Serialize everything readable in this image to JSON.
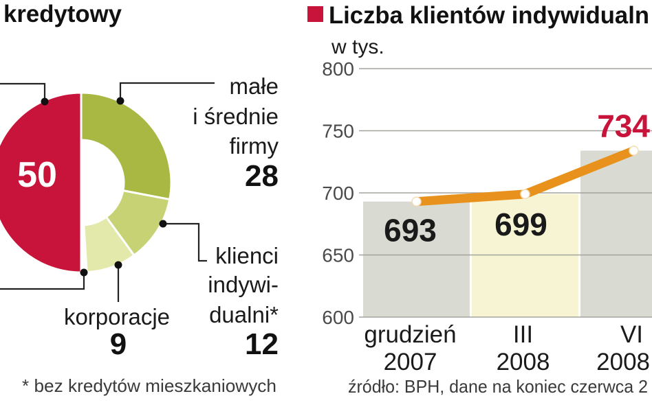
{
  "chart_data": [
    {
      "type": "pie",
      "title": "kredytowy",
      "donut": true,
      "slices": [
        {
          "value": 50,
          "color": "#c8143a",
          "label_lines": []
        },
        {
          "value": 28,
          "color": "#a8b843",
          "label_lines": [
            "małe",
            "i średnie",
            "firmy"
          ]
        },
        {
          "value": 12,
          "color": "#c6d273",
          "label_lines": [
            "klienci",
            "indywi-",
            "dualni*"
          ]
        },
        {
          "value": 9,
          "color": "#e2e9ab",
          "label_lines": [
            "korporacje"
          ]
        }
      ],
      "footnote": "* bez kredytów mieszkaniowych"
    },
    {
      "type": "line",
      "title": "Liczba klientów indywidualn",
      "title_marker_color": "#c8143a",
      "subtitle": "w tys.",
      "categories": [
        [
          "grudzień",
          "2007"
        ],
        [
          "III",
          "2008"
        ],
        [
          "VI",
          "2008"
        ]
      ],
      "series": [
        {
          "values": [
            693,
            699,
            734
          ],
          "color": "#e8911c"
        }
      ],
      "value_label_colors": [
        "#1a1a1a",
        "#1a1a1a",
        "#c8143a"
      ],
      "column_colors": [
        "#d9dad1",
        "#f6f4d2",
        "#d9dad1"
      ],
      "ylim": [
        600,
        800
      ],
      "yticks": [
        800,
        750,
        700,
        650,
        600
      ],
      "grid": true,
      "source": "źródło: BPH, dane na koniec czerwca 2"
    }
  ]
}
